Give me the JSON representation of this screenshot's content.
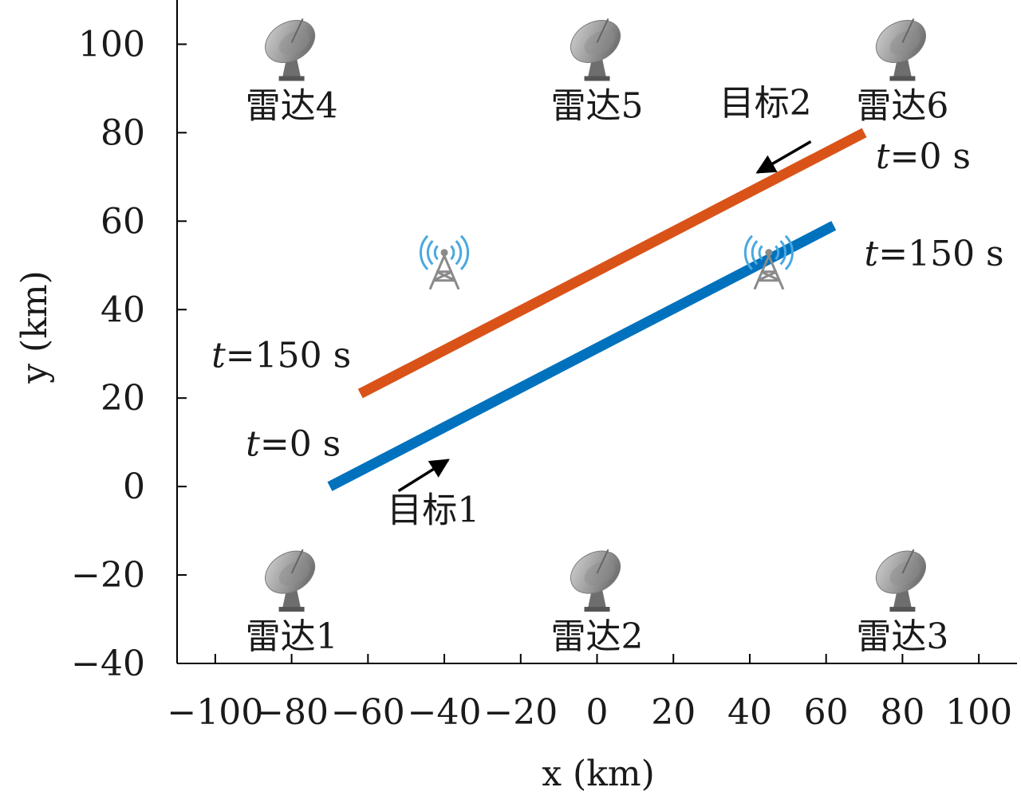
{
  "chart_data": {
    "type": "line",
    "xlabel": "x (km)",
    "ylabel": "y (km)",
    "xlim": [
      -110,
      110
    ],
    "ylim": [
      -40,
      110
    ],
    "x_ticks": [
      -100,
      -80,
      -60,
      -40,
      -20,
      0,
      20,
      40,
      60,
      80,
      100
    ],
    "y_ticks": [
      -40,
      -20,
      0,
      20,
      40,
      60,
      80,
      100
    ],
    "grid": false,
    "series": [
      {
        "name": "目标1",
        "color": "#0072BD",
        "x": [
          -70,
          62
        ],
        "y": [
          0,
          59
        ]
      },
      {
        "name": "目标2",
        "color": "#D95319",
        "x": [
          70,
          -62
        ],
        "y": [
          80,
          21
        ]
      }
    ],
    "radars": [
      {
        "label": "雷达1",
        "x": -80,
        "y": -20
      },
      {
        "label": "雷达2",
        "x": 0,
        "y": -20
      },
      {
        "label": "雷达3",
        "x": 80,
        "y": -20
      },
      {
        "label": "雷达4",
        "x": -80,
        "y": 100
      },
      {
        "label": "雷达5",
        "x": 0,
        "y": 100
      },
      {
        "label": "雷达6",
        "x": 80,
        "y": 100
      }
    ],
    "towers": [
      {
        "x": -40,
        "y": 50,
        "icon": "tower-icon"
      },
      {
        "x": 45,
        "y": 50,
        "icon": "tower-icon"
      }
    ],
    "annotations": [
      {
        "id": "t0-target1",
        "text": "t=0 s",
        "x": -92,
        "y": 7
      },
      {
        "id": "t150-target1",
        "text": "t=150 s",
        "x": 70,
        "y": 50
      },
      {
        "id": "t0-target2",
        "text": "t=0 s",
        "x": 73,
        "y": 72
      },
      {
        "id": "t150-target2",
        "text": "t=150 s",
        "x": -101,
        "y": 27
      },
      {
        "id": "label-target1",
        "text": "目标1",
        "x": -55,
        "y": -8
      },
      {
        "id": "label-target2",
        "text": "目标2",
        "x": 32,
        "y": 84
      }
    ],
    "arrows": [
      {
        "target": "目标1",
        "from": [
          -52,
          -1
        ],
        "to": [
          -39,
          6
        ]
      },
      {
        "target": "目标2",
        "from": [
          56,
          78
        ],
        "to": [
          42,
          71
        ]
      }
    ]
  }
}
